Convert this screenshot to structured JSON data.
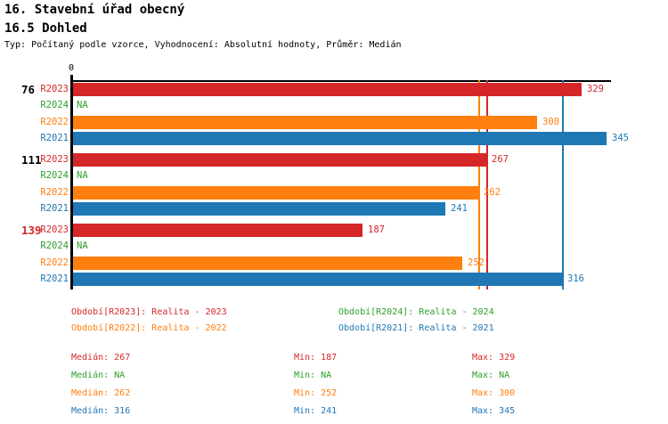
{
  "header": {
    "title": "16. Stavební úřad obecný",
    "subtitle": "16.5 Dohled",
    "meta": "Typ: Počítaný podle vzorce, Vyhodnocení: Absolutní hodnoty, Průměr: Medián"
  },
  "colors": {
    "R2023": "#d62728",
    "R2024": "#2ca02c",
    "R2022": "#ff7f0e",
    "R2021": "#1f77b4",
    "axis": "#000000",
    "highlight": "#d62728"
  },
  "chart_data": {
    "type": "bar",
    "orientation": "horizontal",
    "title": "16.5 Dohled",
    "xlabel": "",
    "ylabel": "",
    "xlim": [
      0,
      348
    ],
    "grid": false,
    "axis_zero_label": "0",
    "series_order": [
      "R2023",
      "R2024",
      "R2022",
      "R2021"
    ],
    "na_text": "NA",
    "groups": [
      {
        "label": "76",
        "label_color": "#000000",
        "bars": [
          {
            "series": "R2023",
            "value": 329,
            "display": "329"
          },
          {
            "series": "R2024",
            "value": null,
            "display": "NA"
          },
          {
            "series": "R2022",
            "value": 300,
            "display": "300"
          },
          {
            "series": "R2021",
            "value": 345,
            "display": "345"
          }
        ]
      },
      {
        "label": "111",
        "label_color": "#000000",
        "bars": [
          {
            "series": "R2023",
            "value": 267,
            "display": "267"
          },
          {
            "series": "R2024",
            "value": null,
            "display": "NA"
          },
          {
            "series": "R2022",
            "value": 262,
            "display": "262"
          },
          {
            "series": "R2021",
            "value": 241,
            "display": "241"
          }
        ]
      },
      {
        "label": "139",
        "label_color": "#d62728",
        "bars": [
          {
            "series": "R2023",
            "value": 187,
            "display": "187"
          },
          {
            "series": "R2024",
            "value": null,
            "display": "NA"
          },
          {
            "series": "R2022",
            "value": 252,
            "display": "252"
          },
          {
            "series": "R2021",
            "value": 316,
            "display": "316"
          }
        ]
      }
    ],
    "median_lines": [
      {
        "series": "R2022",
        "value": 262
      },
      {
        "series": "R2023",
        "value": 267
      },
      {
        "series": "R2021",
        "value": 316
      }
    ]
  },
  "legend": {
    "items": [
      {
        "series": "R2023",
        "text": "Období[R2023]: Realita - 2023"
      },
      {
        "series": "R2024",
        "text": "Období[R2024]: Realita - 2024"
      },
      {
        "series": "R2022",
        "text": "Období[R2022]: Realita - 2022"
      },
      {
        "series": "R2021",
        "text": "Období[R2021]: Realita - 2021"
      }
    ]
  },
  "stats": {
    "labels": {
      "median": "Medián",
      "min": "Min",
      "max": "Max"
    },
    "rows": [
      {
        "series": "R2023",
        "median": "267",
        "min": "187",
        "max": "329"
      },
      {
        "series": "R2024",
        "median": "NA",
        "min": "NA",
        "max": "NA"
      },
      {
        "series": "R2022",
        "median": "262",
        "min": "252",
        "max": "300"
      },
      {
        "series": "R2021",
        "median": "316",
        "min": "241",
        "max": "345"
      }
    ]
  }
}
